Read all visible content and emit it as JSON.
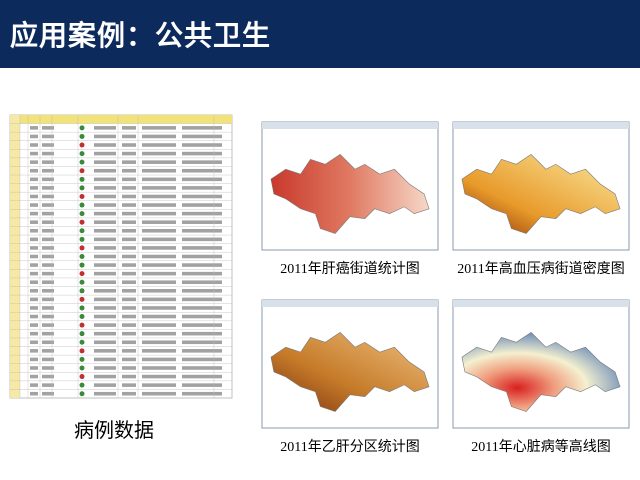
{
  "header": {
    "title": "应用案例：公共卫生"
  },
  "case_data": {
    "label": "病例数据"
  },
  "maps": [
    {
      "caption": "2011年肝癌街道统计图"
    },
    {
      "caption": "2011年高血压病街道密度图"
    },
    {
      "caption": "2011年乙肝分区统计图"
    },
    {
      "caption": "2011年心脏病等高线图"
    }
  ]
}
